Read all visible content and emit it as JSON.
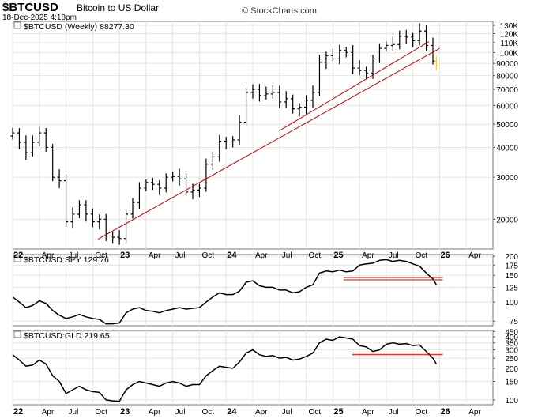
{
  "header": {
    "ticker": "$BTCUSD",
    "subtitle": "Bitcoin to US Dollar",
    "datetime": "18-Dec-2025 4:18pm",
    "source": "© StockCharts.com"
  },
  "colors": {
    "price": "#000000",
    "trendline": "#cc0000",
    "grid": "#e4e4e4",
    "current_bar": "#ffd700"
  },
  "chart_data": [
    {
      "type": "ohlc",
      "label": "$BTCUSD (Weekly) 88277.30",
      "scale": "log",
      "ylim": [
        15000,
        135000
      ],
      "yticks": [
        20000,
        30000,
        40000,
        50000,
        60000,
        70000,
        80000,
        90000,
        100000,
        110000,
        120000,
        130000
      ],
      "ytick_labels": [
        "20000",
        "30000",
        "40000",
        "50000",
        "60000",
        "70000",
        "80000",
        "90000",
        "100K",
        "110K",
        "120K",
        "130K"
      ],
      "xlim": [
        2022.0,
        2026.5
      ],
      "xticks": [
        2022.0,
        2022.25,
        2022.5,
        2022.75,
        2023.0,
        2023.25,
        2023.5,
        2023.75,
        2024.0,
        2024.25,
        2024.5,
        2024.75,
        2025.0,
        2025.25,
        2025.5,
        2025.75,
        2026.0,
        2026.25
      ],
      "xtick_labels": [
        "22",
        "Apr",
        "Jul",
        "Oct",
        "23",
        "Apr",
        "Jul",
        "Oct",
        "24",
        "Apr",
        "Jul",
        "Oct",
        "25",
        "Apr",
        "Jul",
        "Oct",
        "26",
        "Apr"
      ],
      "xtick_bold": [
        true,
        false,
        false,
        false,
        true,
        false,
        false,
        false,
        true,
        false,
        false,
        false,
        true,
        false,
        false,
        false,
        true,
        false
      ],
      "x": [
        2022.0,
        2022.0625,
        2022.125,
        2022.1875,
        2022.25,
        2022.3125,
        2022.375,
        2022.4375,
        2022.5,
        2022.5625,
        2022.625,
        2022.6875,
        2022.75,
        2022.8125,
        2022.875,
        2022.9375,
        2023.0,
        2023.0625,
        2023.125,
        2023.1875,
        2023.25,
        2023.3125,
        2023.375,
        2023.4375,
        2023.5,
        2023.5625,
        2023.625,
        2023.6875,
        2023.75,
        2023.8125,
        2023.875,
        2023.9375,
        2024.0,
        2024.0625,
        2024.125,
        2024.1875,
        2024.25,
        2024.3125,
        2024.375,
        2024.4375,
        2024.5,
        2024.5625,
        2024.625,
        2024.6875,
        2024.75,
        2024.8125,
        2024.875,
        2024.9375,
        2025.0,
        2025.0625,
        2025.125,
        2025.1875,
        2025.25,
        2025.3125,
        2025.375,
        2025.4375,
        2025.5,
        2025.5625,
        2025.625,
        2025.6875,
        2025.75,
        2025.8125,
        2025.875,
        2025.9375,
        2025.97
      ],
      "close": [
        46000,
        42000,
        38000,
        42000,
        46000,
        40000,
        30000,
        29000,
        19500,
        21000,
        23000,
        21000,
        19500,
        20000,
        17000,
        16800,
        16600,
        21000,
        23500,
        27000,
        28500,
        28000,
        27000,
        30000,
        30200,
        29500,
        26000,
        26500,
        27000,
        34000,
        36500,
        42500,
        42200,
        43000,
        51000,
        68000,
        70000,
        66000,
        67000,
        68000,
        62000,
        64000,
        58000,
        59000,
        63000,
        68000,
        91000,
        97000,
        94000,
        102000,
        100000,
        86000,
        84000,
        82000,
        94000,
        104000,
        107000,
        108000,
        117000,
        116000,
        112000,
        123000,
        107000,
        92000,
        88277
      ],
      "trendlines": [
        {
          "from": [
            2022.8,
            16500
          ],
          "to": [
            2026.0,
            104000
          ]
        },
        {
          "from": [
            2024.5,
            47000
          ],
          "to": [
            2025.9,
            111000
          ]
        }
      ]
    },
    {
      "type": "line",
      "label": "$BTCUSD:SPY 129.76",
      "scale": "log",
      "ylim": [
        70,
        205
      ],
      "yticks": [
        75,
        100,
        125,
        150,
        175,
        200
      ],
      "ytick_labels": [
        "75",
        "100",
        "125",
        "150",
        "175",
        "200"
      ],
      "x": [
        2022.0,
        2022.0625,
        2022.125,
        2022.1875,
        2022.25,
        2022.3125,
        2022.375,
        2022.4375,
        2022.5,
        2022.5625,
        2022.625,
        2022.6875,
        2022.75,
        2022.8125,
        2022.875,
        2022.9375,
        2023.0,
        2023.0625,
        2023.125,
        2023.1875,
        2023.25,
        2023.3125,
        2023.375,
        2023.4375,
        2023.5,
        2023.5625,
        2023.625,
        2023.6875,
        2023.75,
        2023.8125,
        2023.875,
        2023.9375,
        2024.0,
        2024.0625,
        2024.125,
        2024.1875,
        2024.25,
        2024.3125,
        2024.375,
        2024.4375,
        2024.5,
        2024.5625,
        2024.625,
        2024.6875,
        2024.75,
        2024.8125,
        2024.875,
        2024.9375,
        2025.0,
        2025.0625,
        2025.125,
        2025.1875,
        2025.25,
        2025.3125,
        2025.375,
        2025.4375,
        2025.5,
        2025.5625,
        2025.625,
        2025.6875,
        2025.75,
        2025.8125,
        2025.875,
        2025.9375,
        2025.97
      ],
      "values": [
        108,
        100,
        92,
        95,
        102,
        98,
        88,
        82,
        78,
        80,
        83,
        80,
        78,
        77,
        72,
        72,
        73,
        85,
        90,
        92,
        88,
        87,
        85,
        88,
        90,
        92,
        90,
        91,
        92,
        100,
        108,
        115,
        112,
        112,
        118,
        135,
        138,
        128,
        125,
        125,
        120,
        120,
        115,
        117,
        125,
        130,
        155,
        160,
        158,
        162,
        158,
        160,
        175,
        178,
        180,
        188,
        190,
        185,
        188,
        185,
        178,
        172,
        155,
        142,
        130
      ],
      "trendlines": [
        {
          "from": [
            2025.1,
            140
          ],
          "to": [
            2026.03,
            140
          ]
        },
        {
          "from": [
            2025.1,
            145
          ],
          "to": [
            2026.03,
            145
          ]
        }
      ]
    },
    {
      "type": "line",
      "label": "$BTCUSD:GLD 219.65",
      "scale": "log",
      "ylim": [
        90,
        460
      ],
      "yticks": [
        100,
        150,
        200,
        250,
        300,
        350,
        400,
        450
      ],
      "ytick_labels": [
        "100",
        "150",
        "200",
        "250",
        "300",
        "350",
        "400",
        "450"
      ],
      "x": [
        2022.0,
        2022.0625,
        2022.125,
        2022.1875,
        2022.25,
        2022.3125,
        2022.375,
        2022.4375,
        2022.5,
        2022.5625,
        2022.625,
        2022.6875,
        2022.75,
        2022.8125,
        2022.875,
        2022.9375,
        2023.0,
        2023.0625,
        2023.125,
        2023.1875,
        2023.25,
        2023.3125,
        2023.375,
        2023.4375,
        2023.5,
        2023.5625,
        2023.625,
        2023.6875,
        2023.75,
        2023.8125,
        2023.875,
        2023.9375,
        2024.0,
        2024.0625,
        2024.125,
        2024.1875,
        2024.25,
        2024.3125,
        2024.375,
        2024.4375,
        2024.5,
        2024.5625,
        2024.625,
        2024.6875,
        2024.75,
        2024.8125,
        2024.875,
        2024.9375,
        2025.0,
        2025.0625,
        2025.125,
        2025.1875,
        2025.25,
        2025.3125,
        2025.375,
        2025.4375,
        2025.5,
        2025.5625,
        2025.625,
        2025.6875,
        2025.75,
        2025.8125,
        2025.875,
        2025.9375,
        2025.97
      ],
      "values": [
        270,
        240,
        210,
        215,
        240,
        220,
        170,
        150,
        115,
        125,
        135,
        125,
        120,
        118,
        100,
        98,
        97,
        125,
        140,
        150,
        145,
        140,
        135,
        145,
        150,
        145,
        135,
        140,
        140,
        170,
        190,
        210,
        205,
        200,
        230,
        280,
        300,
        270,
        260,
        265,
        250,
        255,
        240,
        245,
        260,
        280,
        350,
        380,
        370,
        400,
        390,
        380,
        330,
        320,
        290,
        300,
        340,
        350,
        340,
        345,
        330,
        335,
        290,
        250,
        220
      ],
      "trendlines": [
        {
          "from": [
            2025.18,
            270
          ],
          "to": [
            2026.03,
            270
          ]
        },
        {
          "from": [
            2025.18,
            280
          ],
          "to": [
            2026.03,
            280
          ]
        }
      ]
    }
  ]
}
